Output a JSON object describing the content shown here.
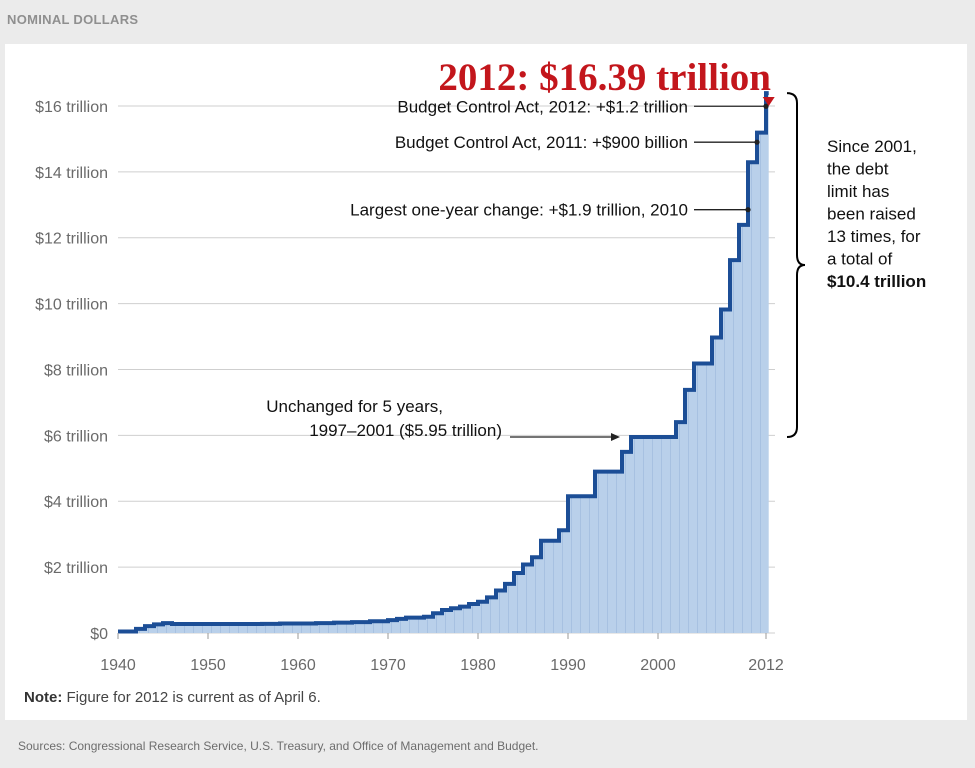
{
  "header": {
    "unit_label": "NOMINAL DOLLARS"
  },
  "footer": {
    "source": "Sources: Congressional Research Service, U.S. Treasury, and Office of Management and Budget."
  },
  "chart_data": {
    "type": "area",
    "title": "2012: $16.39 trillion",
    "xlabel": "",
    "ylabel": "",
    "xlim": [
      1940,
      2012
    ],
    "ylim": [
      0,
      17
    ],
    "x_ticks": [
      {
        "value": 1940,
        "label": "1940"
      },
      {
        "value": 1950,
        "label": "1950"
      },
      {
        "value": 1960,
        "label": "1960"
      },
      {
        "value": 1970,
        "label": "1970"
      },
      {
        "value": 1980,
        "label": "1980"
      },
      {
        "value": 1990,
        "label": "1990"
      },
      {
        "value": 2000,
        "label": "2000"
      },
      {
        "value": 2012,
        "label": "2012"
      }
    ],
    "y_ticks": [
      {
        "value": 0,
        "label": "$0"
      },
      {
        "value": 2,
        "label": "$2 trillion"
      },
      {
        "value": 4,
        "label": "$4 trillion"
      },
      {
        "value": 6,
        "label": "$6 trillion"
      },
      {
        "value": 8,
        "label": "$8 trillion"
      },
      {
        "value": 10,
        "label": "$10 trillion"
      },
      {
        "value": 12,
        "label": "$12 trillion"
      },
      {
        "value": 14,
        "label": "$14 trillion"
      },
      {
        "value": 16,
        "label": "$16 trillion"
      }
    ],
    "grid": true,
    "line_color": "#1c4e96",
    "fill_color": "#b9d0ea",
    "accent_color": "#c3161c",
    "steps": [
      [
        1940,
        0.045
      ],
      [
        1942,
        0.125
      ],
      [
        1943,
        0.21
      ],
      [
        1944,
        0.26
      ],
      [
        1945,
        0.3
      ],
      [
        1946,
        0.275
      ],
      [
        1956,
        0.278
      ],
      [
        1958,
        0.288
      ],
      [
        1962,
        0.3
      ],
      [
        1964,
        0.315
      ],
      [
        1966,
        0.33
      ],
      [
        1968,
        0.358
      ],
      [
        1970,
        0.39
      ],
      [
        1971,
        0.43
      ],
      [
        1972,
        0.465
      ],
      [
        1974,
        0.495
      ],
      [
        1975,
        0.6
      ],
      [
        1976,
        0.7
      ],
      [
        1977,
        0.752
      ],
      [
        1978,
        0.8
      ],
      [
        1979,
        0.88
      ],
      [
        1980,
        0.95
      ],
      [
        1981,
        1.08
      ],
      [
        1982,
        1.29
      ],
      [
        1983,
        1.49
      ],
      [
        1984,
        1.82
      ],
      [
        1985,
        2.08
      ],
      [
        1986,
        2.3
      ],
      [
        1987,
        2.8
      ],
      [
        1989,
        3.12
      ],
      [
        1990,
        4.15
      ],
      [
        1993,
        4.9
      ],
      [
        1996,
        5.5
      ],
      [
        1997,
        5.95
      ],
      [
        2002,
        6.4
      ],
      [
        2003,
        7.38
      ],
      [
        2004,
        8.18
      ],
      [
        2006,
        8.97
      ],
      [
        2007,
        9.82
      ],
      [
        2008,
        11.32
      ],
      [
        2009,
        12.39
      ],
      [
        2010,
        14.29
      ],
      [
        2011,
        15.19
      ],
      [
        2012,
        16.39
      ],
      [
        2012.3,
        16.39
      ]
    ],
    "annotations": [
      {
        "name": "bca-2012",
        "text": "Budget Control Act, 2012: +$1.2 trillion",
        "x": 2012,
        "y": 15.99
      },
      {
        "name": "bca-2011",
        "text": "Budget Control Act, 2011: +$900 billion",
        "x": 2011,
        "y": 14.9
      },
      {
        "name": "largest-change",
        "text": "Largest one-year change: +$1.9 trillion, 2010",
        "x": 2010,
        "y": 12.85
      },
      {
        "name": "unchanged",
        "lines": [
          "Unchanged for 5 years,",
          "1997–2001 ($5.95 trillion)"
        ],
        "x": 1996,
        "y": 5.95
      }
    ],
    "bracket": {
      "y_top": 16.39,
      "y_bottom": 5.95,
      "lines": [
        "Since 2001,",
        "the debt",
        "limit has",
        "been raised",
        "13 times, for",
        "a total of"
      ],
      "bold_line": "$10.4 trillion"
    },
    "note": {
      "label": "Note:",
      "text": " Figure for 2012 is current as of April 6."
    }
  }
}
